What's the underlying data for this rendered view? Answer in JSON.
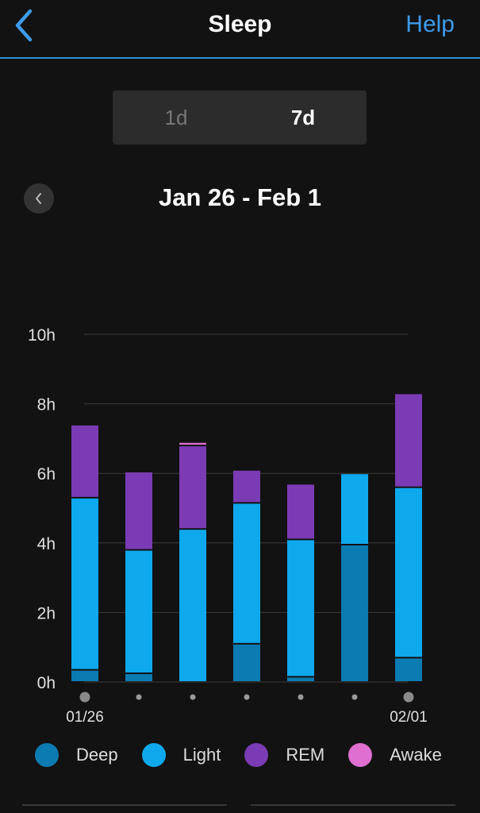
{
  "header": {
    "title": "Sleep",
    "help_label": "Help"
  },
  "tabs": [
    {
      "label": "1d",
      "active": false
    },
    {
      "label": "7d",
      "active": true
    }
  ],
  "date_range": "Jan 26 - Feb 1",
  "colors": {
    "accent": "#2d8fd9",
    "deep": "#0c7bb2",
    "light": "#0ea9ec",
    "rem": "#7b3bb4",
    "awake": "#df6fd0"
  },
  "chart_data": {
    "type": "bar",
    "stacked": true,
    "categories": [
      "01/26",
      "",
      "",
      "",
      "",
      "",
      "02/01"
    ],
    "ytick_labels": [
      "0h",
      "2h",
      "4h",
      "6h",
      "8h",
      "10h"
    ],
    "ylim": [
      0,
      10
    ],
    "grid": true,
    "series": [
      {
        "name": "Deep",
        "values": [
          0.35,
          0.25,
          0.0,
          1.1,
          0.15,
          3.95,
          0.7
        ]
      },
      {
        "name": "Light",
        "values": [
          4.95,
          3.55,
          4.4,
          4.05,
          3.95,
          2.05,
          4.9
        ]
      },
      {
        "name": "REM",
        "values": [
          2.1,
          2.25,
          2.4,
          0.95,
          1.6,
          0.0,
          2.7
        ]
      },
      {
        "name": "Awake",
        "values": [
          0.0,
          0.0,
          0.1,
          0.0,
          0.0,
          0.0,
          0.0
        ]
      }
    ]
  }
}
